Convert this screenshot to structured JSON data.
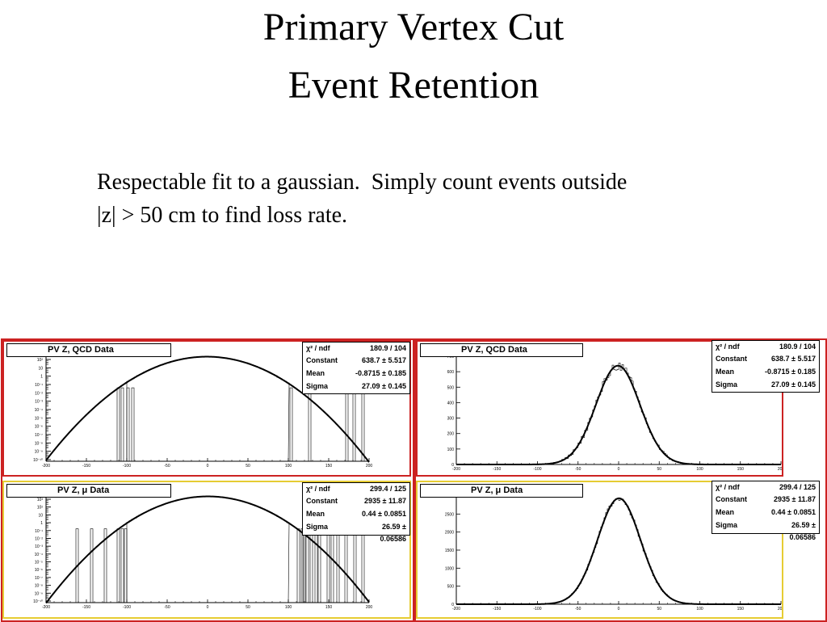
{
  "slide": {
    "title_line1": "Primary Vertex Cut",
    "title_line2": "Event Retention",
    "body_line1": "Respectable fit to a gaussian.  Simply count events outside",
    "body_line2": "|z| > 50 cm to find loss rate."
  },
  "colors": {
    "qcd_frame": "#cc2222",
    "mu_frame": "#e6cc33",
    "outer_frame": "#cc2222"
  },
  "panels": {
    "qcd": {
      "title": "PV Z, QCD Data",
      "stats": [
        {
          "label": "χ² / ndf",
          "value": "180.9 / 104"
        },
        {
          "label": "Constant",
          "value": "638.7 ± 5.517"
        },
        {
          "label": "Mean",
          "value": "-0.8715 ± 0.185"
        },
        {
          "label": "Sigma",
          "value": "27.09 ± 0.145"
        }
      ]
    },
    "mu": {
      "title": "PV Z,  μ Data",
      "stats": [
        {
          "label": "χ² / ndf",
          "value": "299.4 / 125"
        },
        {
          "label": "Constant",
          "value": "2935 ± 11.87"
        },
        {
          "label": "Mean",
          "value": "0.44 ± 0.0851"
        },
        {
          "label": "Sigma",
          "value": "26.59 ± 0.06586"
        }
      ]
    }
  },
  "chart_data": [
    {
      "type": "bar",
      "scale": "log",
      "title": "PV Z, QCD Data",
      "xlim": [
        -200,
        200
      ],
      "xticks": [
        "-200",
        "-150",
        "-100",
        "-50",
        "0",
        "50",
        "100",
        "150",
        "200"
      ],
      "fit": {
        "constant": 638.7,
        "mean": -0.8715,
        "sigma": 27.09
      },
      "ytick_labels": [
        "10²",
        "10",
        "1",
        "10⁻¹",
        "10⁻²",
        "10⁻³",
        "10⁻⁴",
        "10⁻⁵",
        "10⁻⁶",
        "10⁻⁷",
        "10⁻⁸",
        "10⁻⁹",
        "10⁻¹⁰"
      ],
      "outlier_bins": [
        -112,
        -107,
        -100,
        -94,
        102,
        125,
        171,
        180,
        191
      ]
    },
    {
      "type": "bar",
      "scale": "linear",
      "title": "PV Z, QCD Data",
      "xlim": [
        -200,
        200
      ],
      "ylim": [
        0,
        700
      ],
      "xticks": [
        "-200",
        "-150",
        "-100",
        "-50",
        "0",
        "50",
        "100",
        "150",
        "200"
      ],
      "yticks": [
        "0",
        "100",
        "200",
        "300",
        "400",
        "500",
        "600",
        "700"
      ],
      "fit": {
        "constant": 638.7,
        "mean": -0.8715,
        "sigma": 27.09
      }
    },
    {
      "type": "bar",
      "scale": "log",
      "title": "PV Z,  μ Data",
      "xlim": [
        -200,
        200
      ],
      "xticks": [
        "-200",
        "-150",
        "-100",
        "-50",
        "0",
        "50",
        "100",
        "150",
        "200"
      ],
      "fit": {
        "constant": 2935,
        "mean": 0.44,
        "sigma": 26.59
      },
      "ytick_labels": [
        "10³",
        "10²",
        "10",
        "1",
        "10⁻¹",
        "10⁻²",
        "10⁻³",
        "10⁻⁴",
        "10⁻⁵",
        "10⁻⁶",
        "10⁻⁷",
        "10⁻⁸",
        "10⁻⁹",
        "10⁻¹⁰"
      ],
      "outlier_bins": [
        -163,
        -145,
        -128,
        -112,
        -107,
        -103,
        111,
        116,
        118,
        122,
        127,
        133,
        137,
        148,
        153,
        160,
        170,
        181,
        191
      ]
    },
    {
      "type": "bar",
      "scale": "linear",
      "title": "PV Z,  μ Data",
      "xlim": [
        -200,
        200
      ],
      "ylim": [
        0,
        3000
      ],
      "xticks": [
        "-200",
        "-150",
        "-100",
        "-50",
        "0",
        "50",
        "100",
        "150",
        "200"
      ],
      "yticks": [
        "0",
        "500",
        "1000",
        "1500",
        "2000",
        "2500",
        "3000"
      ],
      "fit": {
        "constant": 2935,
        "mean": 0.44,
        "sigma": 26.59
      }
    }
  ]
}
